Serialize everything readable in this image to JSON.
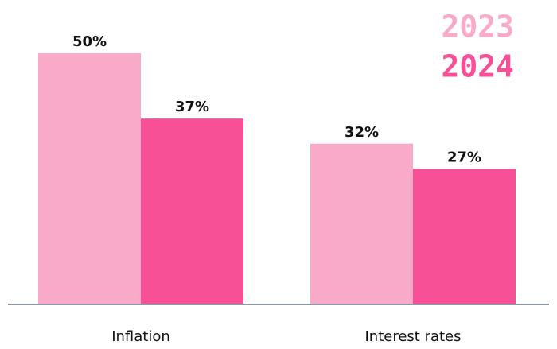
{
  "chart_data": {
    "type": "bar",
    "categories": [
      "Inflation",
      "Interest rates"
    ],
    "series": [
      {
        "name": "2023",
        "color": "#f9aac8",
        "values": [
          50,
          32
        ],
        "value_labels": [
          "50%",
          "32%"
        ]
      },
      {
        "name": "2024",
        "color": "#f75096",
        "values": [
          37,
          27
        ],
        "value_labels": [
          "37%",
          "27%"
        ]
      }
    ],
    "legend": "top-right"
  }
}
